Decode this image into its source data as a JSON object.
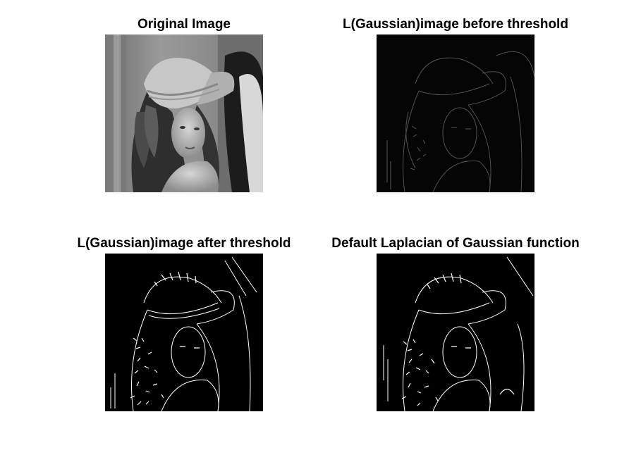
{
  "panels": [
    {
      "title": "Original Image",
      "image": "grayscale-portrait-woman-with-hat"
    },
    {
      "title": "L(Gaussian)image before threshold",
      "image": "faint-edge-map-dark"
    },
    {
      "title": "L(Gaussian)image after threshold",
      "image": "binary-edge-map"
    },
    {
      "title": "Default Laplacian of Gaussian function",
      "image": "binary-edge-map-log"
    }
  ],
  "colors": {
    "background": "#ffffff",
    "edge_bg": "#000000",
    "edge_fg": "#ffffff"
  }
}
